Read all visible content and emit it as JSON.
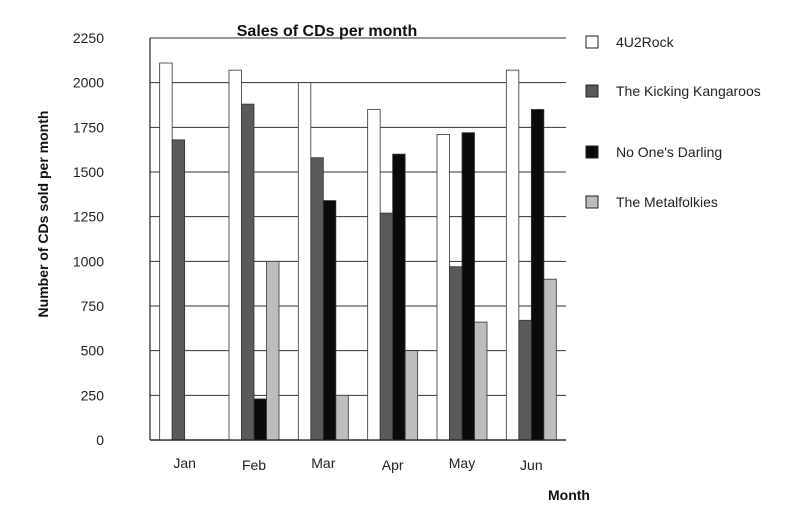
{
  "colors": {
    "4U2Rock": "#ffffff",
    "The Kicking Kangaroos": "#5a5a5a",
    "No One's Darling": "#0a0a0a",
    "The Metalfolkies": "#bdbdbd",
    "grid": "#333333"
  },
  "chart_data": {
    "type": "bar",
    "title": "Sales of CDs per month",
    "xlabel": "Month",
    "ylabel": "Number of CDs sold per month",
    "categories": [
      "Jan",
      "Feb",
      "Mar",
      "Apr",
      "May",
      "Jun"
    ],
    "ylim": [
      0,
      2250
    ],
    "yticks": [
      "0",
      "250",
      "500",
      "750",
      "1000",
      "1250",
      "1500",
      "1750",
      "2000",
      "2250"
    ],
    "grid": true,
    "legend_position": "right",
    "series": [
      {
        "name": "4U2Rock",
        "values": [
          2110,
          2070,
          2000,
          1850,
          1710,
          2070
        ]
      },
      {
        "name": "The Kicking Kangaroos",
        "values": [
          1680,
          1880,
          1580,
          1270,
          970,
          670
        ]
      },
      {
        "name": "No One's Darling",
        "values": [
          0,
          230,
          1340,
          1600,
          1720,
          1850
        ]
      },
      {
        "name": "The Metalfolkies",
        "values": [
          0,
          1000,
          250,
          500,
          660,
          900
        ]
      }
    ]
  }
}
